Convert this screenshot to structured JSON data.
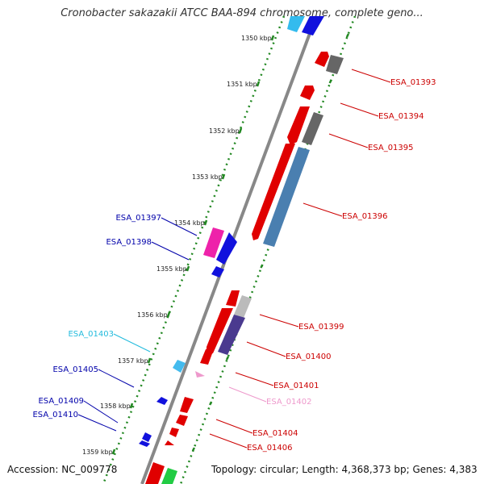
{
  "title": "Cronobacter sakazakii ATCC BAA-894 chromosome, complete geno...",
  "accession": "Accession: NC_009778",
  "topology": "Topology: circular; Length: 4,368,373 bp; Genes: 4,383",
  "colors": {
    "forward_label": "#cc0000",
    "reverse_label": "#0000aa",
    "light_blue_label": "#22bbdd",
    "pink_label": "#ee99cc",
    "backbone": "#888888",
    "tick": "#228822"
  },
  "ticks": [
    "1350 kbp",
    "1351 kbp",
    "1352 kbp",
    "1353 kbp",
    "1354 kbp",
    "1355 kbp",
    "1356 kbp",
    "1357 kbp",
    "1358 kbp",
    "1359 kbp"
  ],
  "gene_labels": [
    {
      "text": "ESA_01393",
      "color": "#cc0000"
    },
    {
      "text": "ESA_01394",
      "color": "#cc0000"
    },
    {
      "text": "ESA_01395",
      "color": "#cc0000"
    },
    {
      "text": "ESA_01396",
      "color": "#cc0000"
    },
    {
      "text": "ESA_01397",
      "color": "#0000aa"
    },
    {
      "text": "ESA_01398",
      "color": "#0000aa"
    },
    {
      "text": "ESA_01399",
      "color": "#cc0000"
    },
    {
      "text": "ESA_01400",
      "color": "#cc0000"
    },
    {
      "text": "ESA_01401",
      "color": "#cc0000"
    },
    {
      "text": "ESA_01402",
      "color": "#ee99cc"
    },
    {
      "text": "ESA_01403",
      "color": "#22bbdd"
    },
    {
      "text": "ESA_01404",
      "color": "#cc0000"
    },
    {
      "text": "ESA_01405",
      "color": "#0000aa"
    },
    {
      "text": "ESA_01406",
      "color": "#cc0000"
    },
    {
      "text": "ESA_01409",
      "color": "#0000aa"
    },
    {
      "text": "ESA_01410",
      "color": "#0000aa"
    }
  ]
}
